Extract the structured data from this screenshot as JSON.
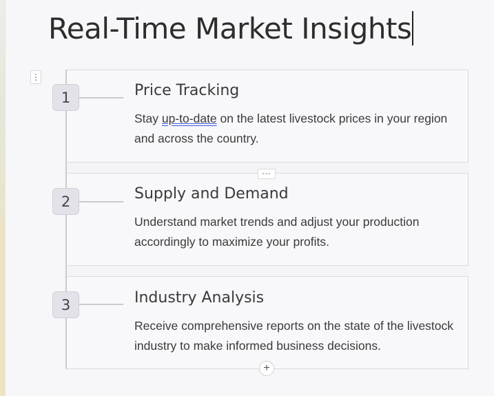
{
  "page": {
    "title": "Real-Time Market Insights"
  },
  "block_handle": {
    "icon": "⋮"
  },
  "separator_handle": {
    "icon": "---"
  },
  "add_button": {
    "icon": "+"
  },
  "steps": [
    {
      "number": "1",
      "title": "Price Tracking",
      "desc_before": "Stay ",
      "desc_marked": "up-to-date",
      "desc_after": " on the latest livestock prices in your region and across the country."
    },
    {
      "number": "2",
      "title": "Supply and Demand",
      "description": "Understand market trends and adjust your production accordingly to maximize your profits."
    },
    {
      "number": "3",
      "title": "Industry Analysis",
      "description": "Receive comprehensive reports on the state of the livestock industry to make informed business decisions."
    }
  ]
}
